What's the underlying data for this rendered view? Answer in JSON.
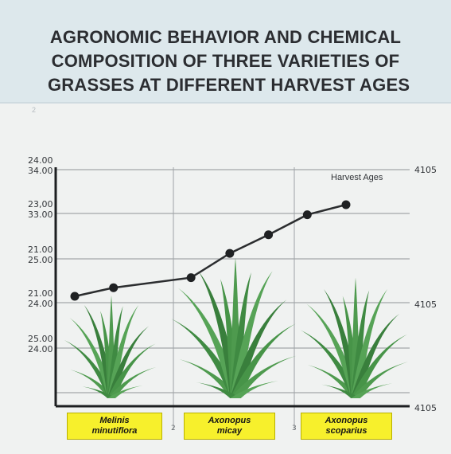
{
  "header": {
    "title_line1": "AGRONOMIC BEHAVIOR AND CHEMICAL",
    "title_line2": "COMPOSITION OF THREE VARIETIES OF",
    "title_line3": "GRASSES AT DIFFERENT HARVEST AGES",
    "ghost_mark": "2"
  },
  "chart_data": {
    "type": "line",
    "title": "AGRONOMIC BEHAVIOR AND CHEMICAL COMPOSITION OF THREE VARIETIES OF GRASSES AT DIFFERENT HARVEST AGES",
    "annotation": "Harvest Ages",
    "left_tick_labels": [
      [
        "24.00",
        "34.00"
      ],
      [
        "23,00",
        "33.00"
      ],
      [
        "21.00",
        "25.00"
      ],
      [
        "21.00",
        "24.00"
      ],
      [
        "25.00",
        "24.00"
      ]
    ],
    "right_tick_labels": [
      "4105",
      "4105",
      "4105"
    ],
    "x_tick_labels": [
      "2",
      "3"
    ],
    "categories": [
      "Melinis minutiflora",
      "Axonopus micay",
      "Axonopus scoparius"
    ],
    "x": [
      0.5,
      1.0,
      2.0,
      2.5,
      3.0,
      3.5,
      4.0
    ],
    "y": [
      0.0,
      0.06,
      0.13,
      0.3,
      0.43,
      0.57,
      0.64
    ],
    "grid": true,
    "colors": {
      "line": "#2b2d2f",
      "grass": "#3e8a43",
      "label_bg": "#f7f02c"
    }
  }
}
